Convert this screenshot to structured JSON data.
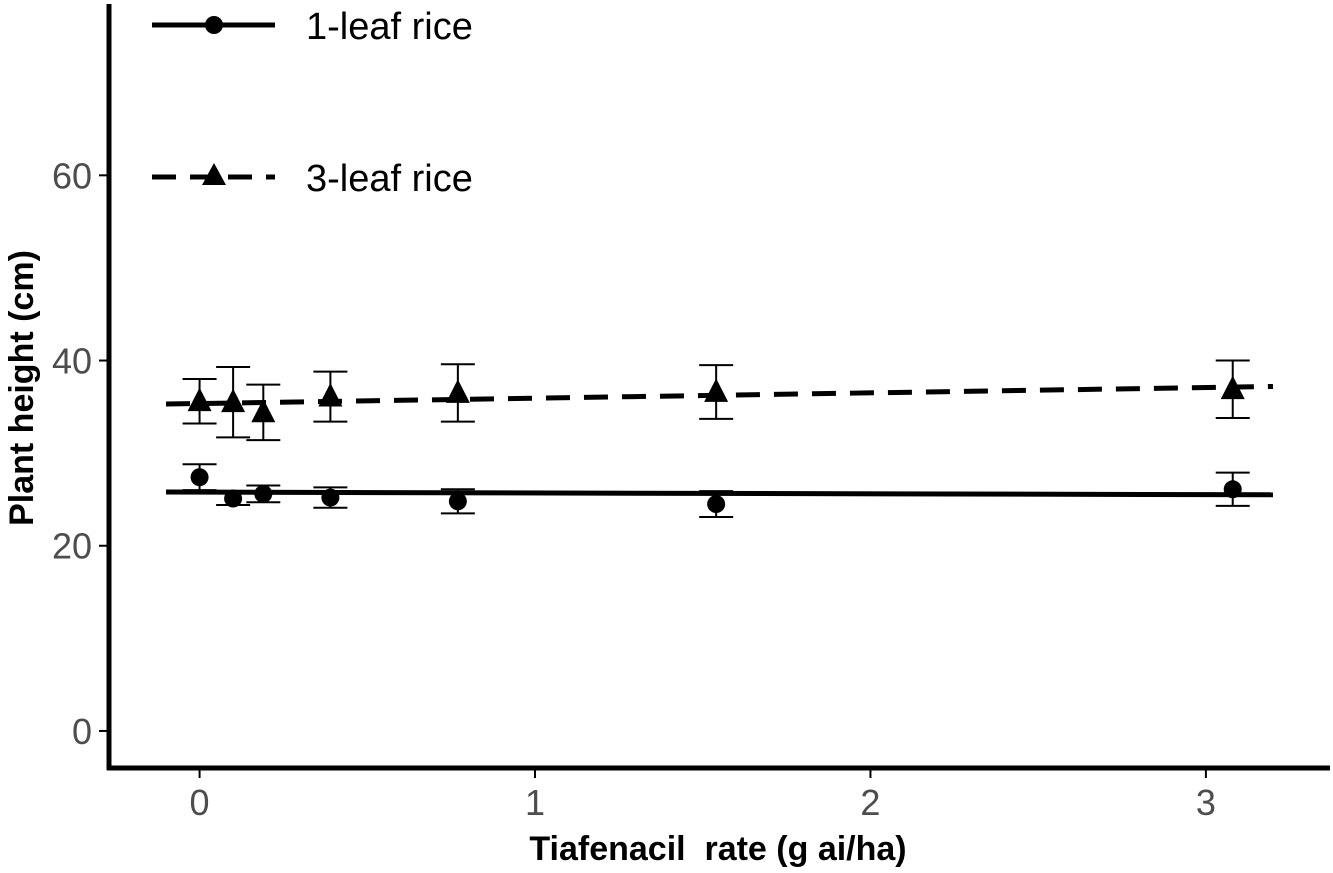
{
  "chart_data": {
    "type": "scatter",
    "xlabel": "Tiafenacil  rate (g ai/ha)",
    "ylabel": "Plant height (cm)",
    "xlim": [
      -0.27,
      3.37
    ],
    "ylim": [
      -4,
      78.5
    ],
    "x_ticks": [
      0,
      1,
      2,
      3
    ],
    "y_ticks": [
      0,
      20,
      40,
      60
    ],
    "x_tick_labels": [
      "0",
      "1",
      "2",
      "3"
    ],
    "y_tick_labels": [
      "0",
      "20",
      "40",
      "60"
    ],
    "grid": false,
    "legend_position": "top-left",
    "series": [
      {
        "name": "1-leaf rice",
        "marker": "circle",
        "line_style": "solid",
        "x": [
          0,
          0.1,
          0.19,
          0.39,
          0.77,
          1.54,
          3.08
        ],
        "y": [
          27.4,
          25.1,
          25.6,
          25.2,
          24.8,
          24.5,
          26.1
        ],
        "error": [
          1.4,
          0.7,
          0.9,
          1.1,
          1.3,
          1.4,
          1.8
        ],
        "fit": {
          "x": [
            -0.1,
            3.2
          ],
          "y": [
            25.8,
            25.5
          ]
        }
      },
      {
        "name": "3-leaf rice",
        "marker": "triangle",
        "line_style": "dashed",
        "x": [
          0,
          0.1,
          0.19,
          0.39,
          0.77,
          1.54,
          3.08
        ],
        "y": [
          35.6,
          35.5,
          34.4,
          36.1,
          36.5,
          36.6,
          36.9
        ],
        "error": [
          2.4,
          3.8,
          3.0,
          2.7,
          3.1,
          2.9,
          3.1
        ],
        "fit": {
          "x": [
            -0.1,
            3.2
          ],
          "y": [
            35.3,
            37.2
          ]
        }
      }
    ],
    "colors": {
      "marks": "#000000",
      "tick_text": "#4d4d4d"
    }
  }
}
